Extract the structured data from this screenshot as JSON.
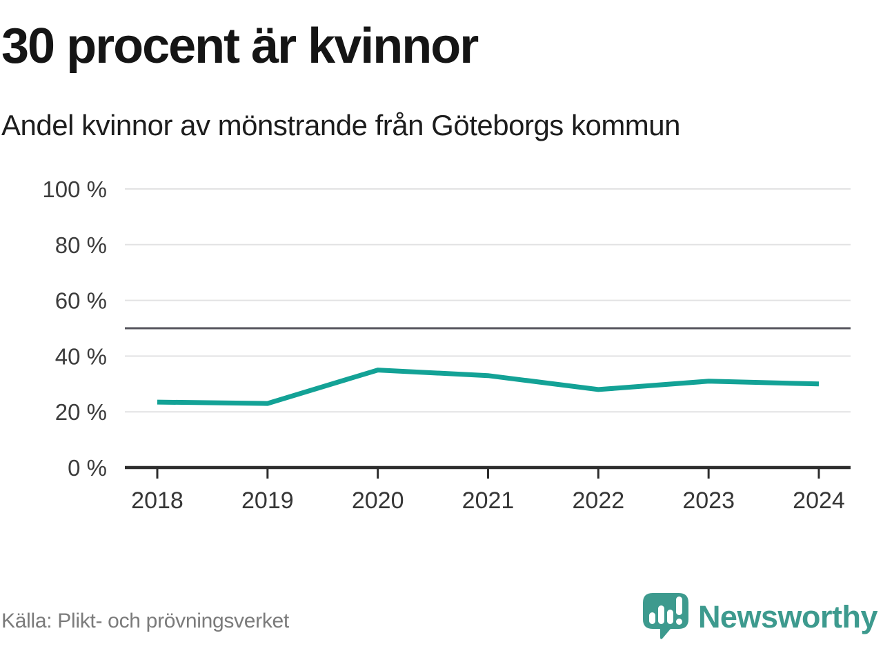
{
  "header": {
    "title": "30 procent är kvinnor",
    "subtitle": "Andel kvinnor av mönstrande från Göteborgs kommun"
  },
  "footer": {
    "source": "Källa: Plikt- och prövningsverket",
    "brand": "Newsworthy"
  },
  "colors": {
    "line": "#13a296",
    "grid": "#e2e2e3",
    "reference": "#56555d",
    "axis": "#2d2d2d",
    "brand_teal": "#3d9a8e",
    "title_text": "#151515",
    "muted_text": "#7b7b7b"
  },
  "icons": {
    "logo": "newsworthy-speech-bubble-bar-chart-icon"
  },
  "chart_data": {
    "type": "line",
    "title": "30 procent är kvinnor",
    "subtitle": "Andel kvinnor av mönstrande från Göteborgs kommun",
    "categories": [
      "2018",
      "2019",
      "2020",
      "2021",
      "2022",
      "2023",
      "2024"
    ],
    "series": [
      {
        "name": "Andel kvinnor av mönstrande",
        "color": "#13a296",
        "values": [
          23.5,
          23,
          35,
          33,
          28,
          31,
          30
        ]
      }
    ],
    "xlabel": "",
    "ylabel": "",
    "ylim": [
      0,
      100
    ],
    "yticks": [
      0,
      20,
      40,
      60,
      80,
      100
    ],
    "ytick_labels": [
      "0 %",
      "20 %",
      "40 %",
      "60 %",
      "80 %",
      "100 %"
    ],
    "reference_line": 50,
    "grid": "horizontal",
    "legend": "none",
    "source": "Källa: Plikt- och prövningsverket"
  }
}
